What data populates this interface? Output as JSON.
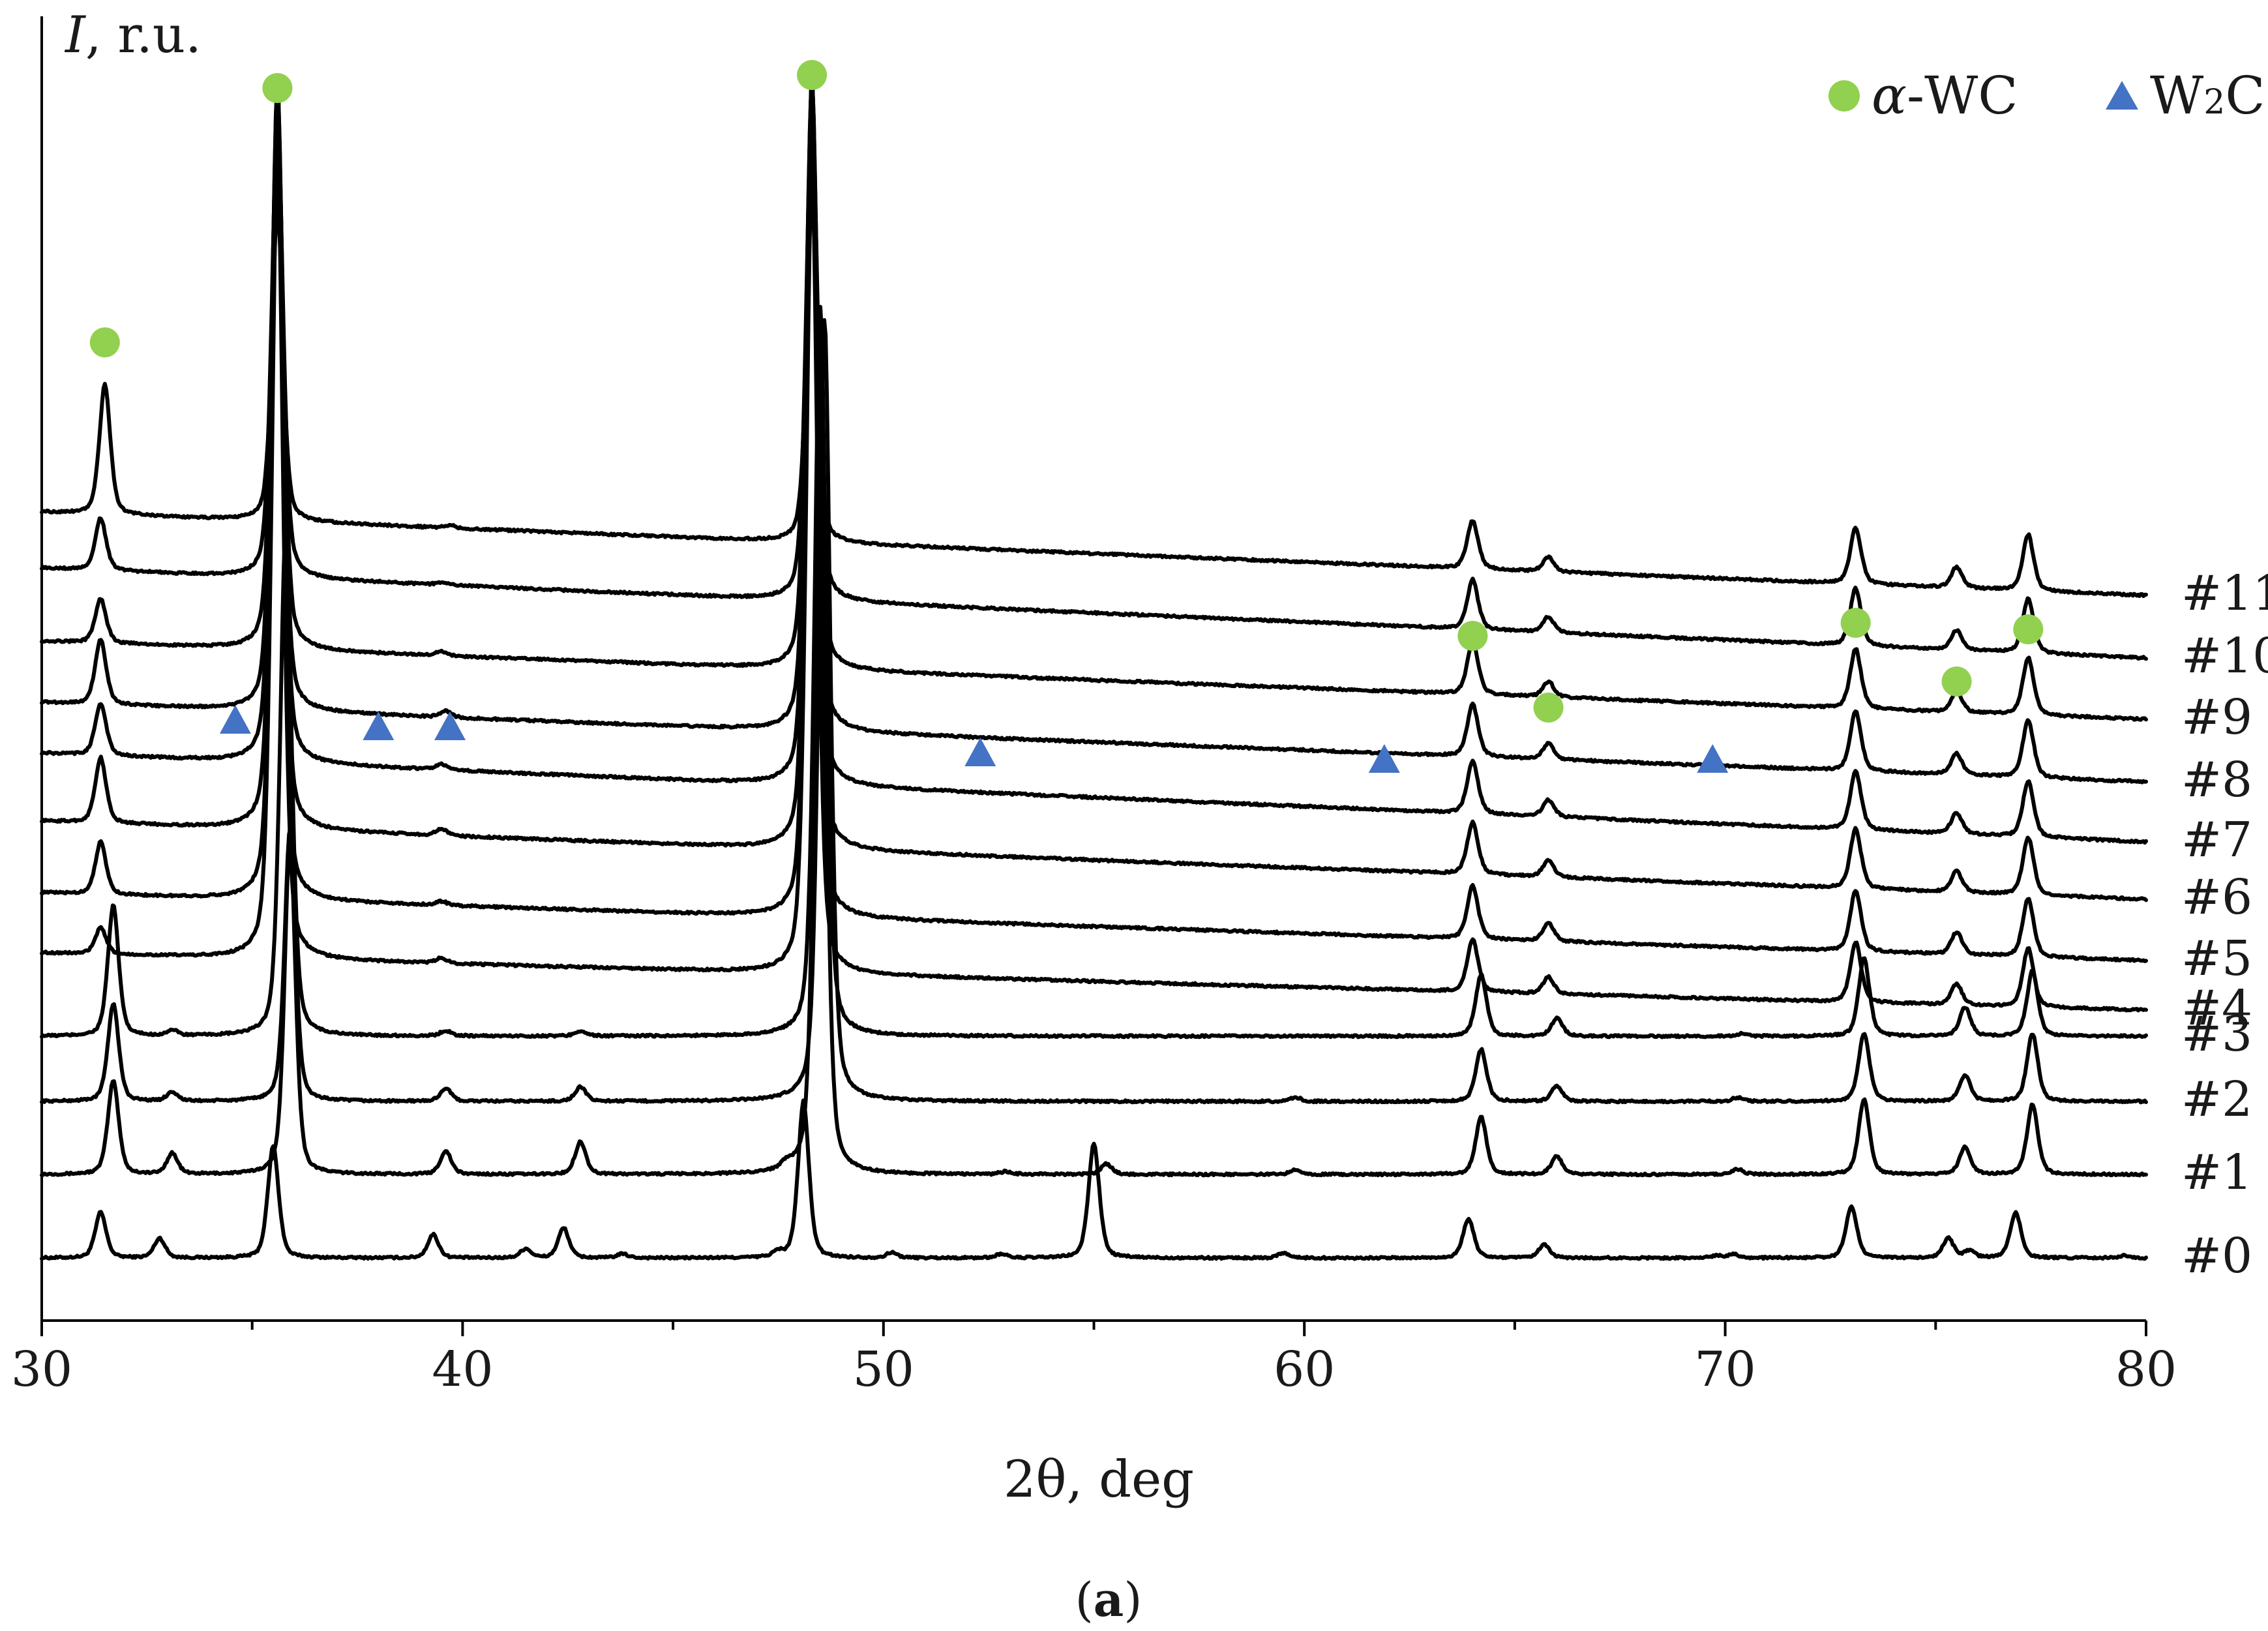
{
  "chart_data": {
    "type": "line",
    "title": "",
    "xlabel": "2θ, deg",
    "ylabel_italic": "I",
    "ylabel_rest": ", r.u.",
    "xlim": [
      30,
      80
    ],
    "xticks": [
      30,
      40,
      50,
      60,
      70,
      80
    ],
    "y_ticks_shown": false,
    "grid": false,
    "panel_label_open": "(",
    "panel_label_letter": "a",
    "panel_label_close": ")",
    "legend": {
      "position": "top-right",
      "entries": [
        {
          "name_prefix_italic": "α",
          "name_rest": "-WC",
          "marker": "circle",
          "color": "#92d050"
        },
        {
          "name_main": "W",
          "name_sub": "2",
          "name_tail": "C",
          "marker": "triangle",
          "color": "#4472c4"
        }
      ]
    },
    "phase_markers": {
      "alpha_WC": {
        "x": [
          31.5,
          35.6,
          48.3,
          64.0,
          65.8,
          73.1,
          75.5,
          77.2
        ],
        "level": [
          0.75,
          0.945,
          0.955,
          0.525,
          0.47,
          0.535,
          0.49,
          0.53
        ]
      },
      "W2C": {
        "x": [
          34.6,
          38.0,
          39.7,
          52.3,
          61.9,
          69.7
        ],
        "level": [
          0.46,
          0.455,
          0.455,
          0.435,
          0.43,
          0.43
        ]
      }
    },
    "series": [
      {
        "name": "#0",
        "baseline_start": 0.048,
        "baseline_end": 0.048,
        "peaks": [
          {
            "x": 31.4,
            "h": 0.035
          },
          {
            "x": 32.8,
            "h": 0.015
          },
          {
            "x": 35.5,
            "h": 0.086
          },
          {
            "x": 39.3,
            "h": 0.018
          },
          {
            "x": 41.5,
            "h": 0.007
          },
          {
            "x": 42.4,
            "h": 0.023
          },
          {
            "x": 43.8,
            "h": 0.003
          },
          {
            "x": 47.5,
            "h": 0.004
          },
          {
            "x": 48.1,
            "h": 0.12
          },
          {
            "x": 50.2,
            "h": 0.004
          },
          {
            "x": 52.8,
            "h": 0.003
          },
          {
            "x": 55.0,
            "h": 0.088
          },
          {
            "x": 59.5,
            "h": 0.004
          },
          {
            "x": 63.9,
            "h": 0.03
          },
          {
            "x": 65.7,
            "h": 0.01
          },
          {
            "x": 69.8,
            "h": 0.002
          },
          {
            "x": 70.2,
            "h": 0.003
          },
          {
            "x": 73.0,
            "h": 0.04
          },
          {
            "x": 75.3,
            "h": 0.015
          },
          {
            "x": 75.8,
            "h": 0.005
          },
          {
            "x": 76.9,
            "h": 0.035
          },
          {
            "x": 79.5,
            "h": 0.002
          }
        ]
      },
      {
        "name": "#1",
        "baseline_start": 0.112,
        "baseline_end": 0.112,
        "peaks": [
          {
            "x": 31.7,
            "h": 0.072
          },
          {
            "x": 33.1,
            "h": 0.016
          },
          {
            "x": 35.9,
            "h": 0.26
          },
          {
            "x": 39.6,
            "h": 0.018
          },
          {
            "x": 42.8,
            "h": 0.025
          },
          {
            "x": 47.7,
            "h": 0.005
          },
          {
            "x": 48.5,
            "h": 0.58
          },
          {
            "x": 52.9,
            "h": 0.002
          },
          {
            "x": 55.3,
            "h": 0.008
          },
          {
            "x": 59.8,
            "h": 0.004
          },
          {
            "x": 64.2,
            "h": 0.044
          },
          {
            "x": 66.0,
            "h": 0.014
          },
          {
            "x": 70.3,
            "h": 0.004
          },
          {
            "x": 73.3,
            "h": 0.058
          },
          {
            "x": 75.7,
            "h": 0.021
          },
          {
            "x": 77.3,
            "h": 0.054
          }
        ]
      },
      {
        "name": "#2",
        "baseline_start": 0.168,
        "baseline_end": 0.168,
        "peaks": [
          {
            "x": 31.7,
            "h": 0.075
          },
          {
            "x": 33.1,
            "h": 0.007
          },
          {
            "x": 35.9,
            "h": 0.21
          },
          {
            "x": 39.6,
            "h": 0.01
          },
          {
            "x": 42.8,
            "h": 0.011
          },
          {
            "x": 48.6,
            "h": 0.6
          },
          {
            "x": 59.8,
            "h": 0.003
          },
          {
            "x": 64.2,
            "h": 0.04
          },
          {
            "x": 66.0,
            "h": 0.012
          },
          {
            "x": 70.3,
            "h": 0.003
          },
          {
            "x": 73.3,
            "h": 0.052
          },
          {
            "x": 75.7,
            "h": 0.02
          },
          {
            "x": 77.3,
            "h": 0.052
          }
        ]
      },
      {
        "name": "#3",
        "baseline_start": 0.218,
        "baseline_end": 0.218,
        "peaks": [
          {
            "x": 31.7,
            "h": 0.1
          },
          {
            "x": 33.1,
            "h": 0.004
          },
          {
            "x": 35.8,
            "h": 0.39
          },
          {
            "x": 39.6,
            "h": 0.004
          },
          {
            "x": 42.8,
            "h": 0.004
          },
          {
            "x": 48.5,
            "h": 0.56
          },
          {
            "x": 64.2,
            "h": 0.047
          },
          {
            "x": 66.0,
            "h": 0.014
          },
          {
            "x": 70.4,
            "h": 0.002
          },
          {
            "x": 73.3,
            "h": 0.06
          },
          {
            "x": 75.7,
            "h": 0.022
          },
          {
            "x": 77.3,
            "h": 0.05
          }
        ]
      },
      {
        "name": "#4",
        "baseline_start": 0.282,
        "baseline_end": 0.238,
        "peaks": [
          {
            "x": 31.4,
            "h": 0.02
          },
          {
            "x": 35.6,
            "h": 0.62
          },
          {
            "x": 39.5,
            "h": 0.004
          },
          {
            "x": 48.3,
            "h": 0.62
          },
          {
            "x": 64.0,
            "h": 0.04
          },
          {
            "x": 65.8,
            "h": 0.013
          },
          {
            "x": 73.1,
            "h": 0.046
          },
          {
            "x": 75.5,
            "h": 0.016
          },
          {
            "x": 77.2,
            "h": 0.045
          }
        ]
      },
      {
        "name": "#5",
        "baseline_start": 0.328,
        "baseline_end": 0.276,
        "peaks": [
          {
            "x": 31.4,
            "h": 0.04
          },
          {
            "x": 35.6,
            "h": 0.58
          },
          {
            "x": 39.5,
            "h": 0.003
          },
          {
            "x": 48.3,
            "h": 0.61
          },
          {
            "x": 64.0,
            "h": 0.041
          },
          {
            "x": 65.8,
            "h": 0.014
          },
          {
            "x": 73.1,
            "h": 0.047
          },
          {
            "x": 75.5,
            "h": 0.017
          },
          {
            "x": 77.2,
            "h": 0.045
          }
        ]
      },
      {
        "name": "#6",
        "baseline_start": 0.383,
        "baseline_end": 0.323,
        "peaks": [
          {
            "x": 31.4,
            "h": 0.05
          },
          {
            "x": 35.6,
            "h": 0.56
          },
          {
            "x": 39.5,
            "h": 0.005
          },
          {
            "x": 48.3,
            "h": 0.58
          },
          {
            "x": 64.0,
            "h": 0.04
          },
          {
            "x": 65.8,
            "h": 0.013
          },
          {
            "x": 73.1,
            "h": 0.046
          },
          {
            "x": 75.5,
            "h": 0.016
          },
          {
            "x": 77.2,
            "h": 0.044
          }
        ]
      },
      {
        "name": "#7",
        "baseline_start": 0.435,
        "baseline_end": 0.367,
        "peaks": [
          {
            "x": 31.4,
            "h": 0.04
          },
          {
            "x": 35.6,
            "h": 0.52
          },
          {
            "x": 39.5,
            "h": 0.004
          },
          {
            "x": 48.3,
            "h": 0.54
          },
          {
            "x": 64.0,
            "h": 0.04
          },
          {
            "x": 65.8,
            "h": 0.013
          },
          {
            "x": 73.1,
            "h": 0.045
          },
          {
            "x": 75.5,
            "h": 0.016
          },
          {
            "x": 77.2,
            "h": 0.043
          }
        ]
      },
      {
        "name": "#8",
        "baseline_start": 0.474,
        "baseline_end": 0.413,
        "peaks": [
          {
            "x": 31.4,
            "h": 0.05
          },
          {
            "x": 35.6,
            "h": 0.48
          },
          {
            "x": 39.6,
            "h": 0.005
          },
          {
            "x": 48.3,
            "h": 0.5
          },
          {
            "x": 64.0,
            "h": 0.04
          },
          {
            "x": 65.8,
            "h": 0.012
          },
          {
            "x": 73.1,
            "h": 0.046
          },
          {
            "x": 75.5,
            "h": 0.016
          },
          {
            "x": 77.2,
            "h": 0.044
          }
        ]
      },
      {
        "name": "#9",
        "baseline_start": 0.521,
        "baseline_end": 0.461,
        "peaks": [
          {
            "x": 31.4,
            "h": 0.034
          },
          {
            "x": 35.6,
            "h": 0.42
          },
          {
            "x": 39.5,
            "h": 0.003
          },
          {
            "x": 48.3,
            "h": 0.45
          },
          {
            "x": 64.0,
            "h": 0.041
          },
          {
            "x": 65.8,
            "h": 0.012
          },
          {
            "x": 73.1,
            "h": 0.046
          },
          {
            "x": 75.5,
            "h": 0.016
          },
          {
            "x": 77.2,
            "h": 0.044
          }
        ]
      },
      {
        "name": "#10",
        "baseline_start": 0.577,
        "baseline_end": 0.508,
        "peaks": [
          {
            "x": 31.4,
            "h": 0.04
          },
          {
            "x": 35.6,
            "h": 0.35
          },
          {
            "x": 39.5,
            "h": 0.002
          },
          {
            "x": 48.3,
            "h": 0.38
          },
          {
            "x": 64.0,
            "h": 0.038
          },
          {
            "x": 65.8,
            "h": 0.012
          },
          {
            "x": 73.1,
            "h": 0.044
          },
          {
            "x": 75.5,
            "h": 0.015
          },
          {
            "x": 77.2,
            "h": 0.042
          }
        ]
      },
      {
        "name": "#11",
        "baseline_start": 0.62,
        "baseline_end": 0.556,
        "peaks": [
          {
            "x": 31.5,
            "h": 0.1
          },
          {
            "x": 35.6,
            "h": 0.24
          },
          {
            "x": 39.7,
            "h": 0.002
          },
          {
            "x": 48.3,
            "h": 0.26
          },
          {
            "x": 64.0,
            "h": 0.037
          },
          {
            "x": 65.8,
            "h": 0.011
          },
          {
            "x": 73.1,
            "h": 0.043
          },
          {
            "x": 75.5,
            "h": 0.016
          },
          {
            "x": 77.2,
            "h": 0.043
          }
        ]
      }
    ]
  }
}
